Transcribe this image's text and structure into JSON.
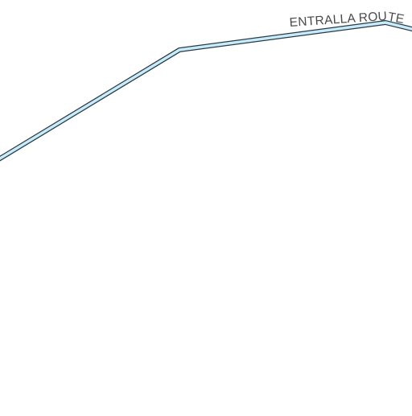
{
  "map": {
    "background_color": "#ffffff",
    "road": {
      "name": "ENTRALLA ROUTE",
      "fill_color": "#c6ecfb",
      "casing_color": "#2b3a42",
      "label_color": "#4a4a4a"
    }
  }
}
